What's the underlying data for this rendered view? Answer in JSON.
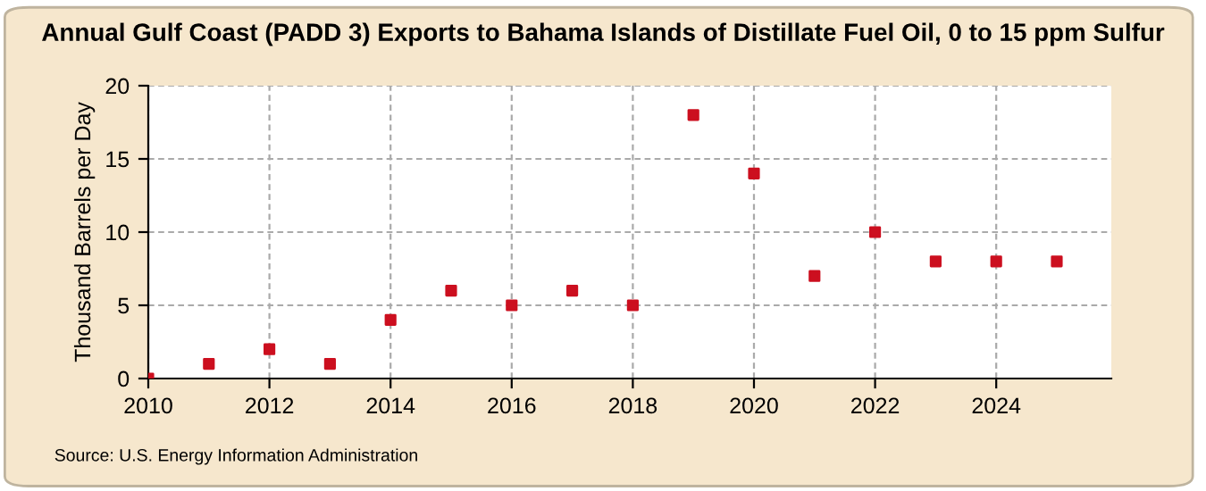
{
  "chart_data": {
    "type": "scatter",
    "title": "Annual Gulf Coast (PADD 3) Exports to Bahama Islands of Distillate Fuel Oil, 0 to 15 ppm Sulfur",
    "ylabel": "Thousand Barrels per Day",
    "x": [
      2010,
      2011,
      2012,
      2013,
      2014,
      2015,
      2016,
      2017,
      2018,
      2019,
      2020,
      2021,
      2022,
      2023,
      2024,
      2025
    ],
    "series": [
      {
        "color": "#cc0f1f",
        "values": [
          0,
          1,
          2,
          1,
          4,
          6,
          5,
          6,
          5,
          18,
          14,
          7,
          10,
          8,
          8,
          8
        ]
      }
    ],
    "marker": "square",
    "xlim": [
      2010,
      2025.9
    ],
    "xticks": [
      2010,
      2012,
      2014,
      2016,
      2018,
      2020,
      2022,
      2024
    ],
    "ylim": [
      0,
      20
    ],
    "yticks": [
      0,
      5,
      10,
      15,
      20
    ],
    "grid": true,
    "legend": false,
    "annotations": [
      "Source: U.S. Energy Information Administration"
    ]
  }
}
